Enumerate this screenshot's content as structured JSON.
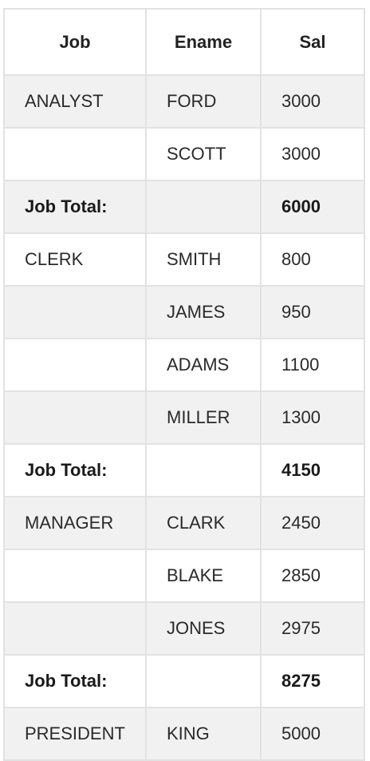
{
  "table": {
    "headers": [
      "Job",
      "Ename",
      "Sal"
    ],
    "rows": [
      {
        "type": "data",
        "cells": [
          "ANALYST",
          "FORD",
          "3000"
        ]
      },
      {
        "type": "data",
        "cells": [
          "",
          "SCOTT",
          "3000"
        ]
      },
      {
        "type": "total",
        "cells": [
          "Job Total:",
          "",
          "6000"
        ]
      },
      {
        "type": "data",
        "cells": [
          "CLERK",
          "SMITH",
          "800"
        ]
      },
      {
        "type": "data",
        "cells": [
          "",
          "JAMES",
          "950"
        ]
      },
      {
        "type": "data",
        "cells": [
          "",
          "ADAMS",
          "1100"
        ]
      },
      {
        "type": "data",
        "cells": [
          "",
          "MILLER",
          "1300"
        ]
      },
      {
        "type": "total",
        "cells": [
          "Job Total:",
          "",
          "4150"
        ]
      },
      {
        "type": "data",
        "cells": [
          "MANAGER",
          "CLARK",
          "2450"
        ]
      },
      {
        "type": "data",
        "cells": [
          "",
          "BLAKE",
          "2850"
        ]
      },
      {
        "type": "data",
        "cells": [
          "",
          "JONES",
          "2975"
        ]
      },
      {
        "type": "total",
        "cells": [
          "Job Total:",
          "",
          "8275"
        ]
      },
      {
        "type": "data",
        "cells": [
          "PRESIDENT",
          "KING",
          "5000"
        ]
      }
    ]
  }
}
